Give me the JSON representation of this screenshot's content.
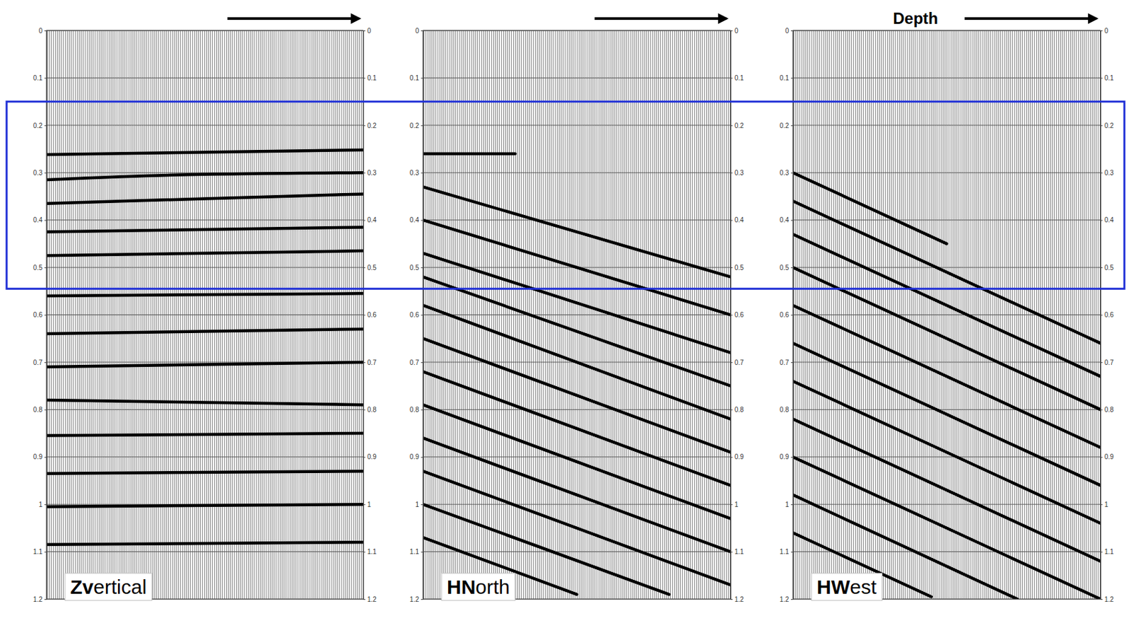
{
  "chart_data": {
    "type": "wiggle",
    "highlight": [
      0.15,
      0.545
    ],
    "panels": [
      {
        "type": "wiggle",
        "title": "Zvertical",
        "color": "#000000",
        "grid": true,
        "tick_labels": "y",
        "xlim": [
          0,
          100
        ],
        "ylim": [
          0,
          1.2
        ],
        "yticks": [
          0,
          0.1,
          0.2,
          0.3,
          0.4,
          0.5,
          0.6,
          0.7,
          0.8,
          0.9,
          1,
          1.1,
          1.2
        ],
        "series": [
          {
            "x": [
              0,
              100
            ],
            "values": [
              0.262,
              0.252
            ]
          },
          {
            "x": [
              0,
              40,
              100
            ],
            "values": [
              0.315,
              0.305,
              0.3
            ]
          },
          {
            "x": [
              0,
              50,
              100
            ],
            "values": [
              0.365,
              0.355,
              0.345
            ]
          },
          {
            "x": [
              0,
              100
            ],
            "values": [
              0.425,
              0.415
            ]
          },
          {
            "x": [
              0,
              100
            ],
            "values": [
              0.475,
              0.465
            ]
          },
          {
            "x": [
              0,
              100
            ],
            "values": [
              0.56,
              0.555
            ]
          },
          {
            "x": [
              0,
              100
            ],
            "values": [
              0.64,
              0.63
            ]
          },
          {
            "x": [
              0,
              100
            ],
            "values": [
              0.71,
              0.7
            ]
          },
          {
            "x": [
              0,
              100
            ],
            "values": [
              0.78,
              0.79
            ]
          },
          {
            "x": [
              0,
              100
            ],
            "values": [
              0.855,
              0.85
            ]
          },
          {
            "x": [
              0,
              100
            ],
            "values": [
              0.935,
              0.93
            ]
          },
          {
            "x": [
              0,
              100
            ],
            "values": [
              1.005,
              1.0
            ]
          },
          {
            "x": [
              0,
              100
            ],
            "values": [
              1.085,
              1.08
            ]
          }
        ]
      },
      {
        "type": "wiggle",
        "title": "HNorth",
        "color": "#000000",
        "grid": true,
        "tick_labels": "y",
        "xlim": [
          0,
          100
        ],
        "ylim": [
          0,
          1.2
        ],
        "yticks": [
          0,
          0.1,
          0.2,
          0.3,
          0.4,
          0.5,
          0.6,
          0.7,
          0.8,
          0.9,
          1,
          1.1,
          1.2
        ],
        "series": [
          {
            "x": [
              0,
              30
            ],
            "values": [
              0.26,
              0.26
            ]
          },
          {
            "x": [
              0,
              100
            ],
            "values": [
              0.33,
              0.52
            ]
          },
          {
            "x": [
              0,
              100
            ],
            "values": [
              0.4,
              0.6
            ]
          },
          {
            "x": [
              0,
              100
            ],
            "values": [
              0.47,
              0.68
            ]
          },
          {
            "x": [
              0,
              100
            ],
            "values": [
              0.52,
              0.75
            ]
          },
          {
            "x": [
              0,
              100
            ],
            "values": [
              0.58,
              0.82
            ]
          },
          {
            "x": [
              0,
              100
            ],
            "values": [
              0.65,
              0.89
            ]
          },
          {
            "x": [
              0,
              100
            ],
            "values": [
              0.72,
              0.96
            ]
          },
          {
            "x": [
              0,
              100
            ],
            "values": [
              0.79,
              1.03
            ]
          },
          {
            "x": [
              0,
              100
            ],
            "values": [
              0.86,
              1.1
            ]
          },
          {
            "x": [
              0,
              100
            ],
            "values": [
              0.93,
              1.17
            ]
          },
          {
            "x": [
              0,
              80
            ],
            "values": [
              1.0,
              1.19
            ]
          },
          {
            "x": [
              0,
              50
            ],
            "values": [
              1.07,
              1.19
            ]
          }
        ]
      },
      {
        "type": "wiggle",
        "title": "HWest",
        "xlabel": "Depth",
        "color": "#000000",
        "grid": true,
        "tick_labels": "y",
        "xlim": [
          0,
          100
        ],
        "ylim": [
          0,
          1.2
        ],
        "yticks": [
          0,
          0.1,
          0.2,
          0.3,
          0.4,
          0.5,
          0.6,
          0.7,
          0.8,
          0.9,
          1,
          1.1,
          1.2
        ],
        "series": [
          {
            "x": [
              0,
              50
            ],
            "values": [
              0.3,
              0.45
            ]
          },
          {
            "x": [
              0,
              100
            ],
            "values": [
              0.36,
              0.66
            ]
          },
          {
            "x": [
              0,
              100
            ],
            "values": [
              0.43,
              0.73
            ]
          },
          {
            "x": [
              0,
              100
            ],
            "values": [
              0.5,
              0.8
            ]
          },
          {
            "x": [
              0,
              100
            ],
            "values": [
              0.58,
              0.88
            ]
          },
          {
            "x": [
              0,
              100
            ],
            "values": [
              0.66,
              0.96
            ]
          },
          {
            "x": [
              0,
              100
            ],
            "values": [
              0.74,
              1.04
            ]
          },
          {
            "x": [
              0,
              100
            ],
            "values": [
              0.82,
              1.12
            ]
          },
          {
            "x": [
              0,
              100
            ],
            "values": [
              0.9,
              1.2
            ]
          },
          {
            "x": [
              0,
              73
            ],
            "values": [
              0.98,
              1.2
            ]
          },
          {
            "x": [
              0,
              45
            ],
            "values": [
              1.06,
              1.195
            ]
          }
        ]
      }
    ]
  }
}
